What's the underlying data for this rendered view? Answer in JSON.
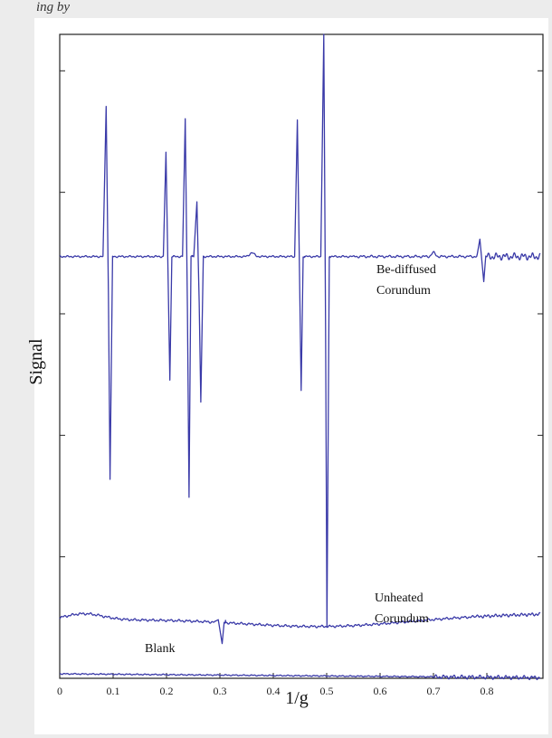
{
  "header": {
    "caption": "ing by"
  },
  "chart_data": {
    "type": "line",
    "xlabel": "1/g",
    "ylabel": "Signal",
    "xlim": [
      0,
      0.9
    ],
    "x_ticks": [
      "0",
      "0.1",
      "0.2",
      "0.3",
      "0.4",
      "0.5",
      "0.6",
      "0.7",
      "0.8"
    ],
    "y_ticks_labeled": false,
    "grid": false,
    "annotations": [
      "Be-diffused",
      "Corundum",
      "Unheated",
      "Corundum",
      "Blank"
    ],
    "series": [
      {
        "name": "Be-diffused Corundum",
        "baseline": 0.655,
        "line_color": "#3a3aa8",
        "features": [
          {
            "x": 0.09,
            "high": 0.888,
            "low": 0.309
          },
          {
            "x": 0.202,
            "high": 0.817,
            "low": 0.463
          },
          {
            "x": 0.238,
            "high": 0.869,
            "low": 0.281
          },
          {
            "x": 0.26,
            "high": 0.74,
            "low": 0.429
          },
          {
            "x": 0.448,
            "high": 0.867,
            "low": 0.447
          },
          {
            "x": 0.497,
            "high": 1.0,
            "low": 0.08
          },
          {
            "x": 0.79,
            "high": 0.682,
            "low": 0.616
          }
        ]
      },
      {
        "name": "Unheated Corundum",
        "baseline": 0.09,
        "line_color": "#3a3aa8",
        "features": [
          {
            "x": 0.3,
            "high": 0.091,
            "low": 0.054
          }
        ]
      },
      {
        "name": "Blank",
        "baseline": 0.007,
        "line_color": "#3a3aa8",
        "features": []
      }
    ]
  }
}
